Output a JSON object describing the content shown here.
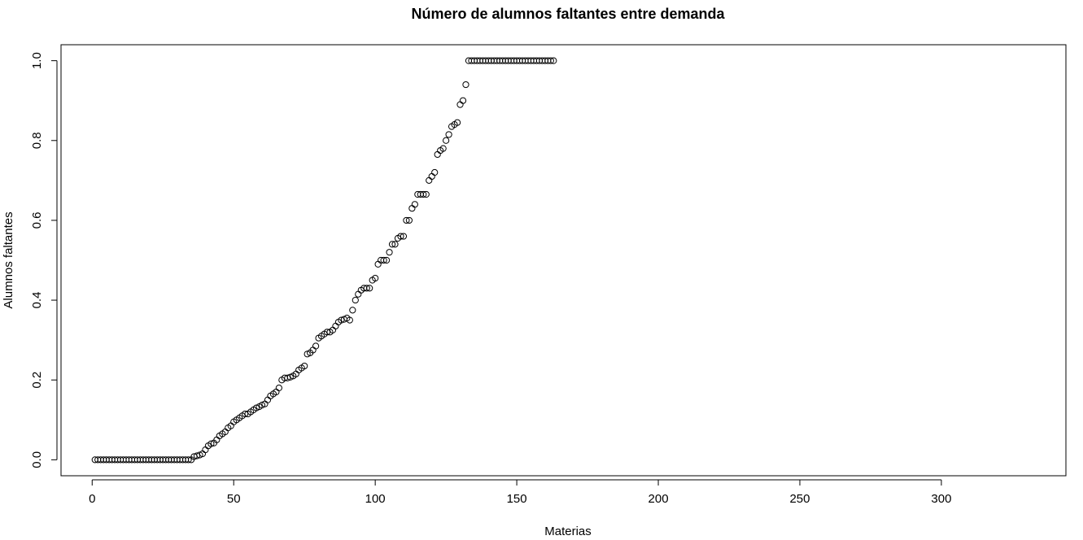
{
  "chart_data": {
    "type": "scatter",
    "title": "Número de alumnos faltantes entre demanda",
    "xlabel": "Materias",
    "ylabel": "Alumnos faltantes",
    "xlim": [
      -11,
      344
    ],
    "ylim": [
      -0.04,
      1.04
    ],
    "x_ticks": [
      0,
      50,
      100,
      150,
      200,
      250,
      300
    ],
    "y_ticks": [
      0.0,
      0.2,
      0.4,
      0.6,
      0.8,
      1.0
    ],
    "x_tick_labels": [
      "0",
      "50",
      "100",
      "150",
      "200",
      "250",
      "300"
    ],
    "y_tick_labels": [
      "0.0",
      "0.2",
      "0.4",
      "0.6",
      "0.8",
      "1.0"
    ],
    "grid": false,
    "marker": "open-circle",
    "y": [
      0,
      0,
      0,
      0,
      0,
      0,
      0,
      0,
      0,
      0,
      0,
      0,
      0,
      0,
      0,
      0,
      0,
      0,
      0,
      0,
      0,
      0,
      0,
      0,
      0,
      0,
      0,
      0,
      0,
      0,
      0,
      0,
      0,
      0,
      0,
      0.008,
      0.01,
      0.012,
      0.015,
      0.025,
      0.035,
      0.04,
      0.042,
      0.05,
      0.06,
      0.065,
      0.07,
      0.08,
      0.085,
      0.095,
      0.1,
      0.105,
      0.11,
      0.115,
      0.115,
      0.12,
      0.125,
      0.13,
      0.133,
      0.137,
      0.14,
      0.15,
      0.16,
      0.165,
      0.17,
      0.18,
      0.2,
      0.205,
      0.205,
      0.207,
      0.21,
      0.215,
      0.225,
      0.23,
      0.235,
      0.265,
      0.268,
      0.275,
      0.285,
      0.305,
      0.31,
      0.315,
      0.32,
      0.32,
      0.325,
      0.335,
      0.345,
      0.35,
      0.352,
      0.355,
      0.35,
      0.375,
      0.4,
      0.415,
      0.425,
      0.43,
      0.43,
      0.43,
      0.45,
      0.455,
      0.49,
      0.5,
      0.5,
      0.5,
      0.52,
      0.54,
      0.54,
      0.555,
      0.56,
      0.56,
      0.6,
      0.6,
      0.63,
      0.64,
      0.665,
      0.665,
      0.665,
      0.665,
      0.7,
      0.71,
      0.72,
      0.765,
      0.775,
      0.78,
      0.8,
      0.815,
      0.835,
      0.84,
      0.845,
      0.89,
      0.9,
      0.94,
      1,
      1,
      1,
      1,
      1,
      1,
      1,
      1,
      1,
      1,
      1,
      1,
      1,
      1,
      1,
      1,
      1,
      1,
      1,
      1,
      1,
      1,
      1,
      1,
      1,
      1,
      1,
      1,
      1,
      1,
      1
    ]
  }
}
